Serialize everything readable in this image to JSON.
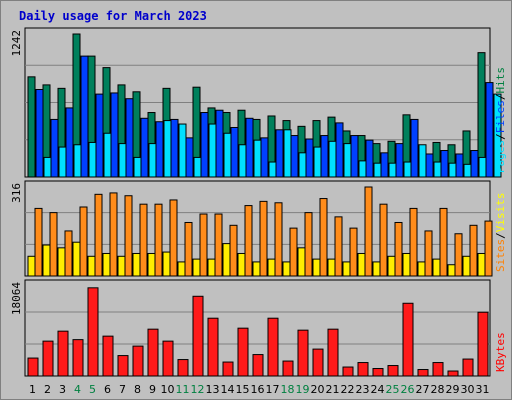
{
  "title": "Daily usage for March 2023",
  "chart_data": [
    {
      "type": "bar",
      "name": "hits-files-pages",
      "ymax_label": "1242",
      "ylim": [
        0,
        1242
      ],
      "categories": [
        "1",
        "2",
        "3",
        "4",
        "5",
        "6",
        "7",
        "8",
        "9",
        "10",
        "11",
        "12",
        "13",
        "14",
        "15",
        "16",
        "17",
        "18",
        "19",
        "20",
        "21",
        "22",
        "23",
        "24",
        "25",
        "26",
        "27",
        "28",
        "29",
        "30",
        "31"
      ],
      "side_labels": [
        {
          "text": "Pages",
          "color": "#00e0ff"
        },
        {
          "text": "/",
          "color": "#000000"
        },
        {
          "text": "Files",
          "color": "#0040ff"
        },
        {
          "text": "/",
          "color": "#000000"
        },
        {
          "text": "Hits",
          "color": "#008040"
        }
      ],
      "series": [
        {
          "name": "Hits",
          "color": "#00805c",
          "values": [
            870,
            800,
            770,
            1242,
            1050,
            950,
            800,
            740,
            560,
            770,
            430,
            780,
            600,
            560,
            580,
            500,
            530,
            490,
            440,
            490,
            520,
            400,
            360,
            290,
            310,
            540,
            240,
            300,
            280,
            400,
            1080
          ]
        },
        {
          "name": "Files",
          "color": "#0040ff",
          "values": [
            760,
            500,
            600,
            1050,
            720,
            730,
            680,
            510,
            480,
            500,
            340,
            560,
            580,
            430,
            510,
            340,
            410,
            360,
            330,
            360,
            470,
            360,
            320,
            210,
            290,
            500,
            200,
            230,
            200,
            230,
            820
          ]
        },
        {
          "name": "Pages",
          "color": "#00e0ff",
          "values": [
            170,
            260,
            280,
            300,
            380,
            290,
            170,
            290,
            490,
            460,
            170,
            460,
            380,
            280,
            320,
            130,
            410,
            210,
            260,
            310,
            290,
            140,
            120,
            120,
            130,
            280,
            130,
            120,
            110,
            170,
            720
          ]
        }
      ]
    },
    {
      "type": "bar",
      "name": "visits-sites",
      "ymax_label": "316",
      "ylim": [
        0,
        316
      ],
      "categories": [
        "1",
        "2",
        "3",
        "4",
        "5",
        "6",
        "7",
        "8",
        "9",
        "10",
        "11",
        "12",
        "13",
        "14",
        "15",
        "16",
        "17",
        "18",
        "19",
        "20",
        "21",
        "22",
        "23",
        "24",
        "25",
        "26",
        "27",
        "28",
        "29",
        "30",
        "31"
      ],
      "side_labels": [
        {
          "text": "Sites",
          "color": "#ff8000"
        },
        {
          "text": "/",
          "color": "#000000"
        },
        {
          "text": "Visits",
          "color": "#ffff00"
        }
      ],
      "series": [
        {
          "name": "Visits",
          "color": "#ff8c1a",
          "values": [
            240,
            225,
            160,
            245,
            290,
            295,
            285,
            255,
            255,
            270,
            190,
            220,
            220,
            180,
            250,
            265,
            260,
            170,
            225,
            275,
            210,
            170,
            316,
            255,
            190,
            240,
            160,
            240,
            150,
            180,
            195
          ]
        },
        {
          "name": "Sites",
          "color": "#ffee00",
          "values": [
            70,
            110,
            100,
            120,
            70,
            80,
            70,
            80,
            80,
            85,
            50,
            60,
            60,
            115,
            80,
            50,
            60,
            50,
            100,
            60,
            60,
            50,
            80,
            50,
            70,
            80,
            50,
            60,
            40,
            70,
            80
          ]
        }
      ]
    },
    {
      "type": "bar",
      "name": "kbytes",
      "ymax_label": "18064",
      "ylim": [
        0,
        18064
      ],
      "categories": [
        "1",
        "2",
        "3",
        "4",
        "5",
        "6",
        "7",
        "8",
        "9",
        "10",
        "11",
        "12",
        "13",
        "14",
        "15",
        "16",
        "17",
        "18",
        "19",
        "20",
        "21",
        "22",
        "23",
        "24",
        "25",
        "26",
        "27",
        "28",
        "29",
        "30",
        "31"
      ],
      "side_labels": [
        {
          "text": "KBytes",
          "color": "#ff0000"
        }
      ],
      "series": [
        {
          "name": "KBytes",
          "color": "#ff1a1a",
          "values": [
            3600,
            7000,
            9000,
            7300,
            17700,
            8000,
            4100,
            6000,
            9400,
            7000,
            3300,
            16000,
            11600,
            2800,
            9600,
            4300,
            11600,
            3000,
            9200,
            5400,
            9400,
            1800,
            2700,
            1500,
            2100,
            14600,
            1300,
            2700,
            1000,
            3400,
            12800
          ]
        }
      ]
    }
  ],
  "x_label_colors": [
    "#000000",
    "#000000",
    "#000000",
    "#008040",
    "#008040",
    "#000000",
    "#000000",
    "#000000",
    "#000000",
    "#000000",
    "#008040",
    "#008040",
    "#000000",
    "#000000",
    "#000000",
    "#000000",
    "#000000",
    "#008040",
    "#008040",
    "#000000",
    "#000000",
    "#000000",
    "#000000",
    "#000000",
    "#008040",
    "#008040",
    "#000000",
    "#000000",
    "#000000",
    "#000000",
    "#000000"
  ]
}
